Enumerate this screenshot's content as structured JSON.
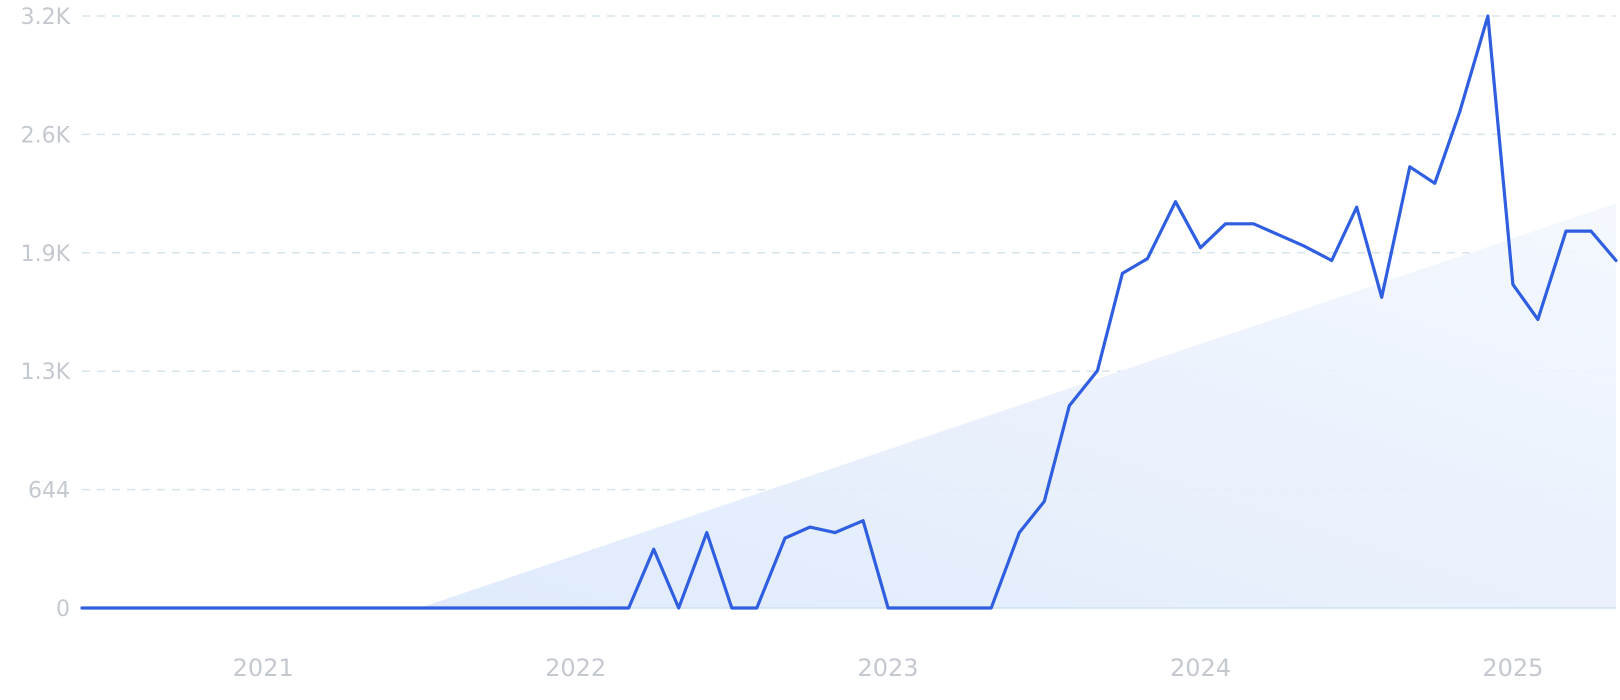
{
  "chart_data": {
    "type": "line",
    "title": "",
    "xlabel": "",
    "ylabel": "",
    "y_ticks": [
      {
        "value": 0,
        "label": "0"
      },
      {
        "value": 644,
        "label": "644"
      },
      {
        "value": 1288,
        "label": "1.3K"
      },
      {
        "value": 1932,
        "label": "1.9K"
      },
      {
        "value": 2576,
        "label": "2.6K"
      },
      {
        "value": 3220,
        "label": "3.2K"
      }
    ],
    "x_ticks": [
      {
        "value": 2021,
        "label": "2021"
      },
      {
        "value": 2022,
        "label": "2022"
      },
      {
        "value": 2023,
        "label": "2023"
      },
      {
        "value": 2024,
        "label": "2024"
      },
      {
        "value": 2025,
        "label": "2025"
      }
    ],
    "xlim": [
      2020.42,
      2025.33
    ],
    "ylim": [
      0,
      3220
    ],
    "grid": true,
    "colors": {
      "line": "#2f5fe0",
      "trend_fill": "#e6effc",
      "grid": "#d6e6ec",
      "axis": "#cfe2ee",
      "labels": "#c4c8cf"
    },
    "series": [
      {
        "values": [
          [
            2020.42,
            0
          ],
          [
            2020.5,
            0
          ],
          [
            2020.58,
            0
          ],
          [
            2020.67,
            0
          ],
          [
            2020.75,
            0
          ],
          [
            2020.83,
            0
          ],
          [
            2020.92,
            0
          ],
          [
            2021.0,
            0
          ],
          [
            2021.08,
            0
          ],
          [
            2021.17,
            0
          ],
          [
            2021.25,
            0
          ],
          [
            2021.33,
            0
          ],
          [
            2021.42,
            0
          ],
          [
            2021.5,
            0
          ],
          [
            2021.58,
            0
          ],
          [
            2021.67,
            0
          ],
          [
            2021.75,
            0
          ],
          [
            2021.83,
            0
          ],
          [
            2021.92,
            0
          ],
          [
            2022.0,
            0
          ],
          [
            2022.08,
            0
          ],
          [
            2022.17,
            0
          ],
          [
            2022.25,
            320
          ],
          [
            2022.33,
            0
          ],
          [
            2022.42,
            410
          ],
          [
            2022.5,
            0
          ],
          [
            2022.58,
            0
          ],
          [
            2022.67,
            380
          ],
          [
            2022.75,
            440
          ],
          [
            2022.83,
            410
          ],
          [
            2022.92,
            475
          ],
          [
            2023.0,
            0
          ],
          [
            2023.08,
            0
          ],
          [
            2023.17,
            0
          ],
          [
            2023.25,
            0
          ],
          [
            2023.33,
            0
          ],
          [
            2023.42,
            410
          ],
          [
            2023.5,
            580
          ],
          [
            2023.58,
            1100
          ],
          [
            2023.67,
            1290
          ],
          [
            2023.75,
            1820
          ],
          [
            2023.83,
            1900
          ],
          [
            2023.92,
            2210
          ],
          [
            2024.0,
            1960
          ],
          [
            2024.08,
            2090
          ],
          [
            2024.17,
            2090
          ],
          [
            2024.25,
            2030
          ],
          [
            2024.33,
            1970
          ],
          [
            2024.42,
            1890
          ],
          [
            2024.5,
            2180
          ],
          [
            2024.58,
            1690
          ],
          [
            2024.67,
            2400
          ],
          [
            2024.75,
            2310
          ],
          [
            2024.83,
            2700
          ],
          [
            2024.92,
            3220
          ],
          [
            2025.0,
            1760
          ],
          [
            2025.08,
            1570
          ],
          [
            2025.17,
            2050
          ],
          [
            2025.25,
            2050
          ],
          [
            2025.33,
            1890
          ]
        ]
      }
    ],
    "trend": [
      [
        2021.5,
        0
      ],
      [
        2025.33,
        2200
      ]
    ]
  }
}
